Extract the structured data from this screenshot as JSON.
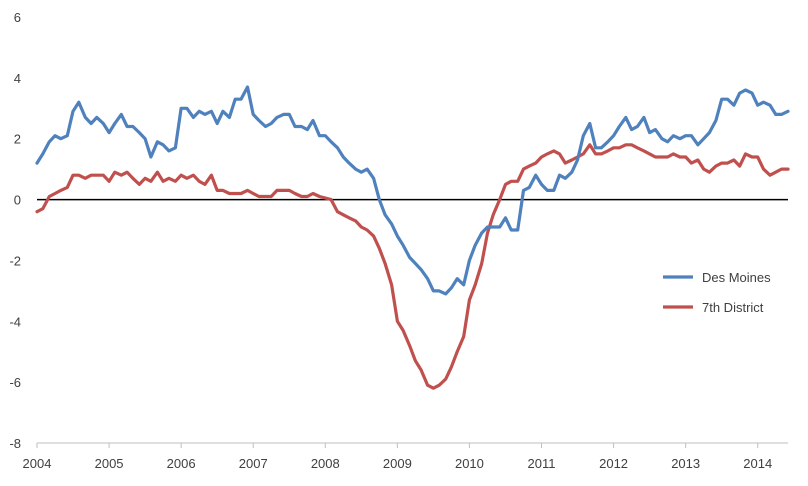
{
  "chart_data": {
    "type": "line",
    "title": "",
    "xlabel": "",
    "ylabel": "",
    "xlim": [
      2004,
      2014.42
    ],
    "ylim": [
      -8,
      6
    ],
    "x_ticks": [
      2004,
      2005,
      2006,
      2007,
      2008,
      2009,
      2010,
      2011,
      2012,
      2013,
      2014
    ],
    "x_tick_labels": [
      "2004",
      "2005",
      "2006",
      "2007",
      "2008",
      "2009",
      "2010",
      "2011",
      "2012",
      "2013",
      "2014"
    ],
    "y_ticks": [
      -8,
      -6,
      -4,
      -2,
      0,
      2,
      4,
      6
    ],
    "y_tick_labels": [
      "-8",
      "-6",
      "-4",
      "-2",
      "0",
      "2",
      "4",
      "6"
    ],
    "zero_line": true,
    "grid": false,
    "legend_position": "right-middle",
    "series": [
      {
        "name": "Des Moines",
        "color": "#4f81bd",
        "points": [
          [
            2004.0,
            1.2
          ],
          [
            2004.08,
            1.5
          ],
          [
            2004.17,
            1.9
          ],
          [
            2004.25,
            2.1
          ],
          [
            2004.33,
            2.0
          ],
          [
            2004.42,
            2.1
          ],
          [
            2004.5,
            2.9
          ],
          [
            2004.58,
            3.2
          ],
          [
            2004.67,
            2.7
          ],
          [
            2004.75,
            2.5
          ],
          [
            2004.83,
            2.7
          ],
          [
            2004.92,
            2.5
          ],
          [
            2005.0,
            2.2
          ],
          [
            2005.08,
            2.5
          ],
          [
            2005.17,
            2.8
          ],
          [
            2005.25,
            2.4
          ],
          [
            2005.33,
            2.4
          ],
          [
            2005.42,
            2.2
          ],
          [
            2005.5,
            2.0
          ],
          [
            2005.58,
            1.4
          ],
          [
            2005.67,
            1.9
          ],
          [
            2005.75,
            1.8
          ],
          [
            2005.83,
            1.6
          ],
          [
            2005.92,
            1.7
          ],
          [
            2006.0,
            3.0
          ],
          [
            2006.08,
            3.0
          ],
          [
            2006.17,
            2.7
          ],
          [
            2006.25,
            2.9
          ],
          [
            2006.33,
            2.8
          ],
          [
            2006.42,
            2.9
          ],
          [
            2006.5,
            2.5
          ],
          [
            2006.58,
            2.9
          ],
          [
            2006.67,
            2.7
          ],
          [
            2006.75,
            3.3
          ],
          [
            2006.83,
            3.3
          ],
          [
            2006.92,
            3.7
          ],
          [
            2007.0,
            2.8
          ],
          [
            2007.08,
            2.6
          ],
          [
            2007.17,
            2.4
          ],
          [
            2007.25,
            2.5
          ],
          [
            2007.33,
            2.7
          ],
          [
            2007.42,
            2.8
          ],
          [
            2007.5,
            2.8
          ],
          [
            2007.58,
            2.4
          ],
          [
            2007.67,
            2.4
          ],
          [
            2007.75,
            2.3
          ],
          [
            2007.83,
            2.6
          ],
          [
            2007.92,
            2.1
          ],
          [
            2008.0,
            2.1
          ],
          [
            2008.08,
            1.9
          ],
          [
            2008.17,
            1.7
          ],
          [
            2008.25,
            1.4
          ],
          [
            2008.33,
            1.2
          ],
          [
            2008.42,
            1.0
          ],
          [
            2008.5,
            0.9
          ],
          [
            2008.58,
            1.0
          ],
          [
            2008.67,
            0.7
          ],
          [
            2008.75,
            0.0
          ],
          [
            2008.83,
            -0.5
          ],
          [
            2008.92,
            -0.8
          ],
          [
            2009.0,
            -1.2
          ],
          [
            2009.08,
            -1.5
          ],
          [
            2009.17,
            -1.9
          ],
          [
            2009.25,
            -2.1
          ],
          [
            2009.33,
            -2.3
          ],
          [
            2009.42,
            -2.6
          ],
          [
            2009.5,
            -3.0
          ],
          [
            2009.58,
            -3.0
          ],
          [
            2009.67,
            -3.1
          ],
          [
            2009.75,
            -2.9
          ],
          [
            2009.83,
            -2.6
          ],
          [
            2009.92,
            -2.8
          ],
          [
            2010.0,
            -2.0
          ],
          [
            2010.08,
            -1.5
          ],
          [
            2010.17,
            -1.1
          ],
          [
            2010.25,
            -0.9
          ],
          [
            2010.33,
            -0.9
          ],
          [
            2010.42,
            -0.9
          ],
          [
            2010.5,
            -0.6
          ],
          [
            2010.58,
            -1.0
          ],
          [
            2010.67,
            -1.0
          ],
          [
            2010.75,
            0.3
          ],
          [
            2010.83,
            0.4
          ],
          [
            2010.92,
            0.8
          ],
          [
            2011.0,
            0.5
          ],
          [
            2011.08,
            0.3
          ],
          [
            2011.17,
            0.3
          ],
          [
            2011.25,
            0.8
          ],
          [
            2011.33,
            0.7
          ],
          [
            2011.42,
            0.9
          ],
          [
            2011.5,
            1.3
          ],
          [
            2011.58,
            2.1
          ],
          [
            2011.67,
            2.5
          ],
          [
            2011.75,
            1.7
          ],
          [
            2011.83,
            1.7
          ],
          [
            2011.92,
            1.9
          ],
          [
            2012.0,
            2.1
          ],
          [
            2012.08,
            2.4
          ],
          [
            2012.17,
            2.7
          ],
          [
            2012.25,
            2.3
          ],
          [
            2012.33,
            2.4
          ],
          [
            2012.42,
            2.7
          ],
          [
            2012.5,
            2.2
          ],
          [
            2012.58,
            2.3
          ],
          [
            2012.67,
            2.0
          ],
          [
            2012.75,
            1.9
          ],
          [
            2012.83,
            2.1
          ],
          [
            2012.92,
            2.0
          ],
          [
            2013.0,
            2.1
          ],
          [
            2013.08,
            2.1
          ],
          [
            2013.17,
            1.8
          ],
          [
            2013.25,
            2.0
          ],
          [
            2013.33,
            2.2
          ],
          [
            2013.42,
            2.6
          ],
          [
            2013.5,
            3.3
          ],
          [
            2013.58,
            3.3
          ],
          [
            2013.67,
            3.1
          ],
          [
            2013.75,
            3.5
          ],
          [
            2013.83,
            3.6
          ],
          [
            2013.92,
            3.5
          ],
          [
            2014.0,
            3.1
          ],
          [
            2014.08,
            3.2
          ],
          [
            2014.17,
            3.1
          ],
          [
            2014.25,
            2.8
          ],
          [
            2014.33,
            2.8
          ],
          [
            2014.42,
            2.9
          ]
        ]
      },
      {
        "name": "7th District",
        "color": "#c0504d",
        "points": [
          [
            2004.0,
            -0.4
          ],
          [
            2004.08,
            -0.3
          ],
          [
            2004.17,
            0.1
          ],
          [
            2004.25,
            0.2
          ],
          [
            2004.33,
            0.3
          ],
          [
            2004.42,
            0.4
          ],
          [
            2004.5,
            0.8
          ],
          [
            2004.58,
            0.8
          ],
          [
            2004.67,
            0.7
          ],
          [
            2004.75,
            0.8
          ],
          [
            2004.83,
            0.8
          ],
          [
            2004.92,
            0.8
          ],
          [
            2005.0,
            0.6
          ],
          [
            2005.08,
            0.9
          ],
          [
            2005.17,
            0.8
          ],
          [
            2005.25,
            0.9
          ],
          [
            2005.33,
            0.7
          ],
          [
            2005.42,
            0.5
          ],
          [
            2005.5,
            0.7
          ],
          [
            2005.58,
            0.6
          ],
          [
            2005.67,
            0.9
          ],
          [
            2005.75,
            0.6
          ],
          [
            2005.83,
            0.7
          ],
          [
            2005.92,
            0.6
          ],
          [
            2006.0,
            0.8
          ],
          [
            2006.08,
            0.7
          ],
          [
            2006.17,
            0.8
          ],
          [
            2006.25,
            0.6
          ],
          [
            2006.33,
            0.5
          ],
          [
            2006.42,
            0.8
          ],
          [
            2006.5,
            0.3
          ],
          [
            2006.58,
            0.3
          ],
          [
            2006.67,
            0.2
          ],
          [
            2006.75,
            0.2
          ],
          [
            2006.83,
            0.2
          ],
          [
            2006.92,
            0.3
          ],
          [
            2007.0,
            0.2
          ],
          [
            2007.08,
            0.1
          ],
          [
            2007.17,
            0.1
          ],
          [
            2007.25,
            0.1
          ],
          [
            2007.33,
            0.3
          ],
          [
            2007.42,
            0.3
          ],
          [
            2007.5,
            0.3
          ],
          [
            2007.58,
            0.2
          ],
          [
            2007.67,
            0.1
          ],
          [
            2007.75,
            0.1
          ],
          [
            2007.83,
            0.2
          ],
          [
            2007.92,
            0.1
          ],
          [
            2008.0,
            0.05
          ],
          [
            2008.08,
            0.0
          ],
          [
            2008.17,
            -0.4
          ],
          [
            2008.25,
            -0.5
          ],
          [
            2008.33,
            -0.6
          ],
          [
            2008.42,
            -0.7
          ],
          [
            2008.5,
            -0.9
          ],
          [
            2008.58,
            -1.0
          ],
          [
            2008.67,
            -1.2
          ],
          [
            2008.75,
            -1.6
          ],
          [
            2008.83,
            -2.1
          ],
          [
            2008.92,
            -2.8
          ],
          [
            2009.0,
            -4.0
          ],
          [
            2009.08,
            -4.3
          ],
          [
            2009.17,
            -4.8
          ],
          [
            2009.25,
            -5.3
          ],
          [
            2009.33,
            -5.6
          ],
          [
            2009.42,
            -6.1
          ],
          [
            2009.5,
            -6.2
          ],
          [
            2009.58,
            -6.1
          ],
          [
            2009.67,
            -5.9
          ],
          [
            2009.75,
            -5.5
          ],
          [
            2009.83,
            -5.0
          ],
          [
            2009.92,
            -4.5
          ],
          [
            2010.0,
            -3.3
          ],
          [
            2010.08,
            -2.8
          ],
          [
            2010.17,
            -2.1
          ],
          [
            2010.25,
            -1.1
          ],
          [
            2010.33,
            -0.5
          ],
          [
            2010.42,
            0.0
          ],
          [
            2010.5,
            0.5
          ],
          [
            2010.58,
            0.6
          ],
          [
            2010.67,
            0.6
          ],
          [
            2010.75,
            1.0
          ],
          [
            2010.83,
            1.1
          ],
          [
            2010.92,
            1.2
          ],
          [
            2011.0,
            1.4
          ],
          [
            2011.08,
            1.5
          ],
          [
            2011.17,
            1.6
          ],
          [
            2011.25,
            1.5
          ],
          [
            2011.33,
            1.2
          ],
          [
            2011.42,
            1.3
          ],
          [
            2011.5,
            1.4
          ],
          [
            2011.58,
            1.5
          ],
          [
            2011.67,
            1.8
          ],
          [
            2011.75,
            1.5
          ],
          [
            2011.83,
            1.5
          ],
          [
            2011.92,
            1.6
          ],
          [
            2012.0,
            1.7
          ],
          [
            2012.08,
            1.7
          ],
          [
            2012.17,
            1.8
          ],
          [
            2012.25,
            1.8
          ],
          [
            2012.33,
            1.7
          ],
          [
            2012.42,
            1.6
          ],
          [
            2012.5,
            1.5
          ],
          [
            2012.58,
            1.4
          ],
          [
            2012.67,
            1.4
          ],
          [
            2012.75,
            1.4
          ],
          [
            2012.83,
            1.5
          ],
          [
            2012.92,
            1.4
          ],
          [
            2013.0,
            1.4
          ],
          [
            2013.08,
            1.2
          ],
          [
            2013.17,
            1.3
          ],
          [
            2013.25,
            1.0
          ],
          [
            2013.33,
            0.9
          ],
          [
            2013.42,
            1.1
          ],
          [
            2013.5,
            1.2
          ],
          [
            2013.58,
            1.2
          ],
          [
            2013.67,
            1.3
          ],
          [
            2013.75,
            1.1
          ],
          [
            2013.83,
            1.5
          ],
          [
            2013.92,
            1.4
          ],
          [
            2014.0,
            1.4
          ],
          [
            2014.08,
            1.0
          ],
          [
            2014.17,
            0.8
          ],
          [
            2014.25,
            0.9
          ],
          [
            2014.33,
            1.0
          ],
          [
            2014.42,
            1.0
          ]
        ]
      }
    ]
  }
}
